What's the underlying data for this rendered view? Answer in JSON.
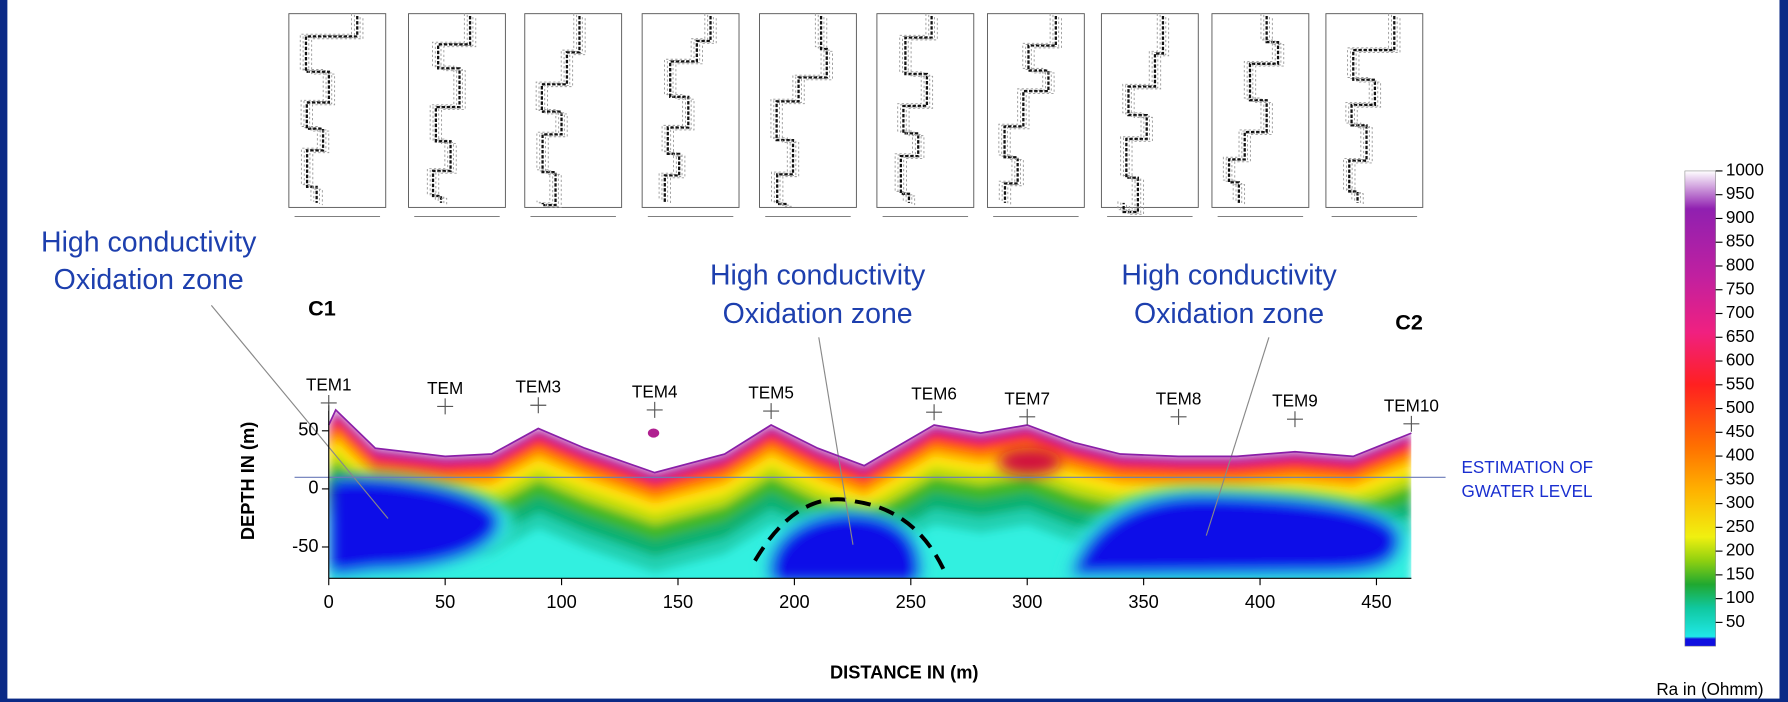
{
  "chart_data": {
    "type": "section",
    "xlabel": "DISTANCE  IN (m)",
    "ylabel": "DEPTH  IN (m)",
    "xlim": [
      0,
      465
    ],
    "xticks": [
      0,
      50,
      100,
      150,
      200,
      250,
      300,
      350,
      400,
      450
    ],
    "ylim": [
      -77,
      72
    ],
    "yticks": [
      50,
      0,
      -50
    ],
    "profile_labels": [
      "C1",
      "C2"
    ],
    "stations": {
      "names": [
        "TEM1",
        "TEM",
        "TEM3",
        "TEM4",
        "TEM5",
        "TEM6",
        "TEM7",
        "TEM8",
        "TEM9",
        "TEM10"
      ],
      "x": [
        0,
        50,
        90,
        140,
        190,
        260,
        300,
        365,
        415,
        465
      ],
      "elevation": [
        74,
        71,
        72,
        68,
        67,
        66,
        62,
        62,
        60,
        56
      ]
    },
    "surface": {
      "x": [
        0,
        3,
        20,
        50,
        70,
        90,
        110,
        140,
        170,
        190,
        210,
        230,
        260,
        280,
        300,
        320,
        340,
        365,
        390,
        415,
        440,
        465
      ],
      "y": [
        55,
        68,
        35,
        28,
        30,
        52,
        35,
        14,
        30,
        55,
        35,
        20,
        55,
        48,
        55,
        40,
        30,
        28,
        28,
        32,
        28,
        48
      ]
    },
    "water_level": 10,
    "water_level_label": [
      "ESTIMATION OF",
      "GWATER LEVEL"
    ],
    "annotations": [
      [
        "High conductivity",
        "Oxidation zone"
      ],
      [
        "High conductivity",
        "Oxidation zone"
      ],
      [
        "High conductivity",
        "Oxidation zone"
      ]
    ],
    "colorbar": {
      "label": "Ra in (Ohmm)",
      "lim": [
        0,
        1000
      ],
      "ticks": [
        50,
        100,
        150,
        200,
        250,
        300,
        350,
        400,
        450,
        500,
        550,
        600,
        650,
        700,
        750,
        800,
        850,
        900,
        950,
        1000
      ]
    }
  }
}
